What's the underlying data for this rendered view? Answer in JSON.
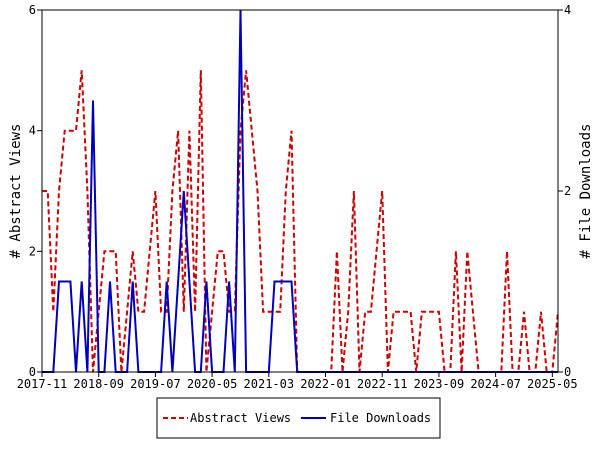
{
  "chart_data": {
    "type": "line",
    "title": "",
    "xlabel": "",
    "ylabel": "# Abstract Views",
    "y2label": "# File Downloads",
    "ylim": [
      0,
      6
    ],
    "y2lim": [
      0,
      4
    ],
    "yticks": [
      "0",
      "2",
      "4",
      "6"
    ],
    "y2ticks": [
      "0",
      "2",
      "4"
    ],
    "xticks": [
      "2017-11",
      "2018-09",
      "2019-07",
      "2020-05",
      "2021-03",
      "2022-01",
      "2022-11",
      "2023-09",
      "2024-07",
      "2025-05"
    ],
    "grid": false,
    "legend_position": "bottom-center",
    "x": [
      "2017-11",
      "2017-12",
      "2018-01",
      "2018-02",
      "2018-03",
      "2018-04",
      "2018-05",
      "2018-06",
      "2018-07",
      "2018-08",
      "2018-09",
      "2018-10",
      "2018-11",
      "2018-12",
      "2019-01",
      "2019-02",
      "2019-03",
      "2019-04",
      "2019-05",
      "2019-06",
      "2019-07",
      "2019-08",
      "2019-09",
      "2019-10",
      "2019-11",
      "2019-12",
      "2020-01",
      "2020-02",
      "2020-03",
      "2020-04",
      "2020-05",
      "2020-06",
      "2020-07",
      "2020-08",
      "2020-09",
      "2020-10",
      "2020-11",
      "2020-12",
      "2021-01",
      "2021-02",
      "2021-03",
      "2021-04",
      "2021-05",
      "2021-06",
      "2021-07",
      "2021-08",
      "2021-09",
      "2021-10",
      "2021-11",
      "2021-12",
      "2022-01",
      "2022-02",
      "2022-03",
      "2022-04",
      "2022-05",
      "2022-06",
      "2022-07",
      "2022-08",
      "2022-09",
      "2022-10",
      "2022-11",
      "2022-12",
      "2023-01",
      "2023-02",
      "2023-03",
      "2023-04",
      "2023-05",
      "2023-06",
      "2023-07",
      "2023-08",
      "2023-09",
      "2023-10",
      "2023-11",
      "2023-12",
      "2024-01",
      "2024-02",
      "2024-03",
      "2024-04",
      "2024-05",
      "2024-06",
      "2024-07",
      "2024-08",
      "2024-09",
      "2024-10",
      "2024-11",
      "2024-12",
      "2025-01",
      "2025-02",
      "2025-03",
      "2025-04",
      "2025-05",
      "2025-06"
    ],
    "series": [
      {
        "name": "Abstract Views",
        "axis": "left",
        "color": "#cc0000",
        "dash": "dashed",
        "values": [
          3,
          3,
          1,
          3,
          4,
          4,
          4,
          5,
          3,
          0,
          1,
          2,
          2,
          2,
          0,
          1,
          2,
          1,
          1,
          2,
          3,
          1,
          1,
          3,
          4,
          1,
          4,
          1,
          5,
          0,
          1,
          2,
          2,
          1,
          1,
          4,
          5,
          4,
          3,
          1,
          1,
          1,
          1,
          3,
          4,
          0,
          0,
          0,
          0,
          0,
          0,
          0,
          2,
          0,
          1,
          3,
          0,
          1,
          1,
          2,
          3,
          0,
          1,
          1,
          1,
          1,
          0,
          1,
          1,
          1,
          1,
          0,
          0,
          2,
          0,
          2,
          1,
          0,
          0,
          0,
          0,
          0,
          2,
          0,
          0,
          1,
          0,
          0,
          1,
          0,
          0,
          1
        ]
      },
      {
        "name": "File Downloads",
        "axis": "right",
        "color": "#0000bb",
        "dash": "solid",
        "values": [
          0,
          0,
          0,
          1,
          1,
          1,
          0,
          1,
          0,
          3,
          0,
          0,
          1,
          0,
          0,
          0,
          1,
          0,
          0,
          0,
          0,
          0,
          1,
          0,
          1,
          2,
          1,
          0,
          0,
          1,
          0,
          0,
          0,
          1,
          0,
          4,
          0,
          0,
          0,
          0,
          0,
          1,
          1,
          1,
          1,
          0,
          0,
          0,
          0,
          0,
          0,
          0,
          0,
          0,
          0,
          0,
          0,
          0,
          0,
          0,
          0,
          0,
          0,
          0,
          0,
          0,
          0,
          0,
          0,
          0,
          0,
          0,
          0,
          0,
          0,
          0,
          0,
          0,
          0,
          0,
          0,
          0,
          0,
          0,
          0,
          0,
          0,
          0,
          0,
          0,
          0,
          0
        ]
      }
    ]
  }
}
